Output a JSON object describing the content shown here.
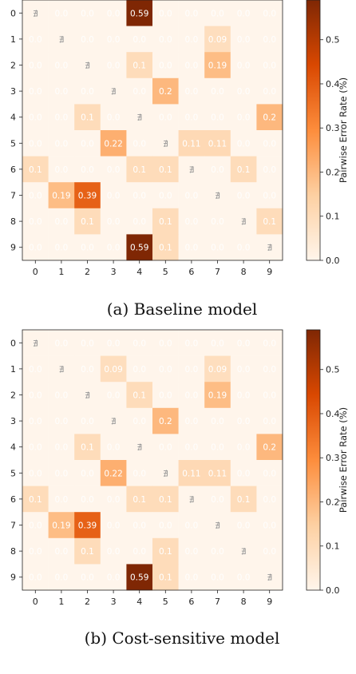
{
  "chart_data": [
    {
      "type": "heatmap",
      "title": "",
      "caption": "(a) Baseline model",
      "x_ticks": [
        "0",
        "1",
        "2",
        "3",
        "4",
        "5",
        "6",
        "7",
        "8",
        "9"
      ],
      "y_ticks": [
        "0",
        "1",
        "2",
        "3",
        "4",
        "5",
        "6",
        "7",
        "8",
        "9"
      ],
      "colorbar": {
        "label": "Pairwise Error Rate (%)",
        "min": 0.0,
        "max": 0.59,
        "ticks": [
          "0.0",
          "0.1",
          "0.2",
          "0.3",
          "0.4",
          "0.5"
        ],
        "tick_values": [
          0,
          0.1,
          0.2,
          0.3,
          0.4,
          0.5
        ]
      },
      "colormap": [
        "#fff5eb",
        "#fdd0a2",
        "#fd8d3c",
        "#d94801",
        "#7f2704"
      ],
      "diagonal_label": "∄",
      "values": [
        [
          null,
          0,
          0,
          0,
          0.59,
          0,
          0,
          0,
          0,
          0
        ],
        [
          0,
          null,
          0,
          0,
          0,
          0,
          0,
          0.09,
          0,
          0
        ],
        [
          0,
          0,
          null,
          0,
          0.1,
          0,
          0,
          0.19,
          0,
          0
        ],
        [
          0,
          0,
          0,
          null,
          0,
          0.2,
          0,
          0,
          0,
          0
        ],
        [
          0,
          0,
          0.1,
          0,
          null,
          0,
          0,
          0,
          0,
          0.2
        ],
        [
          0,
          0,
          0,
          0.22,
          0,
          null,
          0.11,
          0.11,
          0,
          0
        ],
        [
          0.1,
          0,
          0,
          0,
          0.1,
          0.1,
          null,
          0,
          0.1,
          0
        ],
        [
          0,
          0.19,
          0.39,
          0,
          0,
          0,
          0,
          null,
          0,
          0
        ],
        [
          0,
          0,
          0.1,
          0,
          0,
          0.1,
          0,
          0,
          null,
          0.1
        ],
        [
          0,
          0,
          0,
          0,
          0.59,
          0.1,
          0,
          0,
          0,
          null
        ]
      ],
      "labels": [
        [
          "∄",
          "0.0",
          "0.0",
          "0.0",
          "0.59",
          "0.0",
          "0.0",
          "0.0",
          "0.0",
          "0.0"
        ],
        [
          "0.0",
          "∄",
          "0.0",
          "0.0",
          "0.0",
          "0.0",
          "0.0",
          "0.09",
          "0.0",
          "0.0"
        ],
        [
          "0.0",
          "0.0",
          "∄",
          "0.0",
          "0.1",
          "0.0",
          "0.0",
          "0.19",
          "0.0",
          "0.0"
        ],
        [
          "0.0",
          "0.0",
          "0.0",
          "∄",
          "0.0",
          "0.2",
          "0.0",
          "0.0",
          "0.0",
          "0.0"
        ],
        [
          "0.0",
          "0.0",
          "0.1",
          "0.0",
          "∄",
          "0.0",
          "0.0",
          "0.0",
          "0.0",
          "0.2"
        ],
        [
          "0.0",
          "0.0",
          "0.0",
          "0.22",
          "0.0",
          "∄",
          "0.11",
          "0.11",
          "0.0",
          "0.0"
        ],
        [
          "0.1",
          "0.0",
          "0.0",
          "0.0",
          "0.1",
          "0.1",
          "∄",
          "0.0",
          "0.1",
          "0.0"
        ],
        [
          "0.0",
          "0.19",
          "0.39",
          "0.0",
          "0.0",
          "0.0",
          "0.0",
          "∄",
          "0.0",
          "0.0"
        ],
        [
          "0.0",
          "0.0",
          "0.1",
          "0.0",
          "0.0",
          "0.1",
          "0.0",
          "0.0",
          "∄",
          "0.1"
        ],
        [
          "0.0",
          "0.0",
          "0.0",
          "0.0",
          "0.59",
          "0.1",
          "0.0",
          "0.0",
          "0.0",
          "∄"
        ]
      ]
    },
    {
      "type": "heatmap",
      "title": "",
      "caption": "(b) Cost-sensitive model",
      "x_ticks": [
        "0",
        "1",
        "2",
        "3",
        "4",
        "5",
        "6",
        "7",
        "8",
        "9"
      ],
      "y_ticks": [
        "0",
        "1",
        "2",
        "3",
        "4",
        "5",
        "6",
        "7",
        "8",
        "9"
      ],
      "colorbar": {
        "label": "Pairwise Error Rate (%)",
        "min": 0.0,
        "max": 0.59,
        "ticks": [
          "0.0",
          "0.1",
          "0.2",
          "0.3",
          "0.4",
          "0.5"
        ],
        "tick_values": [
          0,
          0.1,
          0.2,
          0.3,
          0.4,
          0.5
        ]
      },
      "colormap": [
        "#fff5eb",
        "#fdd0a2",
        "#fd8d3c",
        "#d94801",
        "#7f2704"
      ],
      "diagonal_label": "∄",
      "values": [
        [
          null,
          0,
          0,
          0,
          0,
          0,
          0,
          0,
          0,
          0
        ],
        [
          0,
          null,
          0,
          0.09,
          0,
          0,
          0,
          0.09,
          0,
          0
        ],
        [
          0,
          0,
          null,
          0,
          0.1,
          0,
          0,
          0.19,
          0,
          0
        ],
        [
          0,
          0,
          0,
          null,
          0,
          0.2,
          0,
          0,
          0,
          0
        ],
        [
          0,
          0,
          0.1,
          0,
          null,
          0,
          0,
          0,
          0,
          0.2
        ],
        [
          0,
          0,
          0,
          0.22,
          0,
          null,
          0.11,
          0.11,
          0,
          0
        ],
        [
          0.1,
          0,
          0,
          0,
          0.1,
          0.1,
          null,
          0,
          0.1,
          0
        ],
        [
          0,
          0.19,
          0.39,
          0,
          0,
          0,
          0,
          null,
          0,
          0
        ],
        [
          0,
          0,
          0.1,
          0,
          0,
          0.1,
          0,
          0,
          null,
          0
        ],
        [
          0,
          0,
          0,
          0,
          0.59,
          0.1,
          0,
          0,
          0,
          null
        ]
      ],
      "labels": [
        [
          "∄",
          "0.0",
          "0.0",
          "0.0",
          "0.0",
          "0.0",
          "0.0",
          "0.0",
          "0.0",
          "0.0"
        ],
        [
          "0.0",
          "∄",
          "0.0",
          "0.09",
          "0.0",
          "0.0",
          "0.0",
          "0.09",
          "0.0",
          "0.0"
        ],
        [
          "0.0",
          "0.0",
          "∄",
          "0.0",
          "0.1",
          "0.0",
          "0.0",
          "0.19",
          "0.0",
          "0.0"
        ],
        [
          "0.0",
          "0.0",
          "0.0",
          "∄",
          "0.0",
          "0.2",
          "0.0",
          "0.0",
          "0.0",
          "0.0"
        ],
        [
          "0.0",
          "0.0",
          "0.1",
          "0.0",
          "∄",
          "0.0",
          "0.0",
          "0.0",
          "0.0",
          "0.2"
        ],
        [
          "0.0",
          "0.0",
          "0.0",
          "0.22",
          "0.0",
          "∄",
          "0.11",
          "0.11",
          "0.0",
          "0.0"
        ],
        [
          "0.1",
          "0.0",
          "0.0",
          "0.0",
          "0.1",
          "0.1",
          "∄",
          "0.0",
          "0.1",
          "0.0"
        ],
        [
          "0.0",
          "0.19",
          "0.39",
          "0.0",
          "0.0",
          "0.0",
          "0.0",
          "∄",
          "0.0",
          "0.0"
        ],
        [
          "0.0",
          "0.0",
          "0.1",
          "0.0",
          "0.0",
          "0.1",
          "0.0",
          "0.0",
          "∄",
          "0.0"
        ],
        [
          "0.0",
          "0.0",
          "0.0",
          "0.0",
          "0.59",
          "0.1",
          "0.0",
          "0.0",
          "0.0",
          "∄"
        ]
      ]
    }
  ]
}
